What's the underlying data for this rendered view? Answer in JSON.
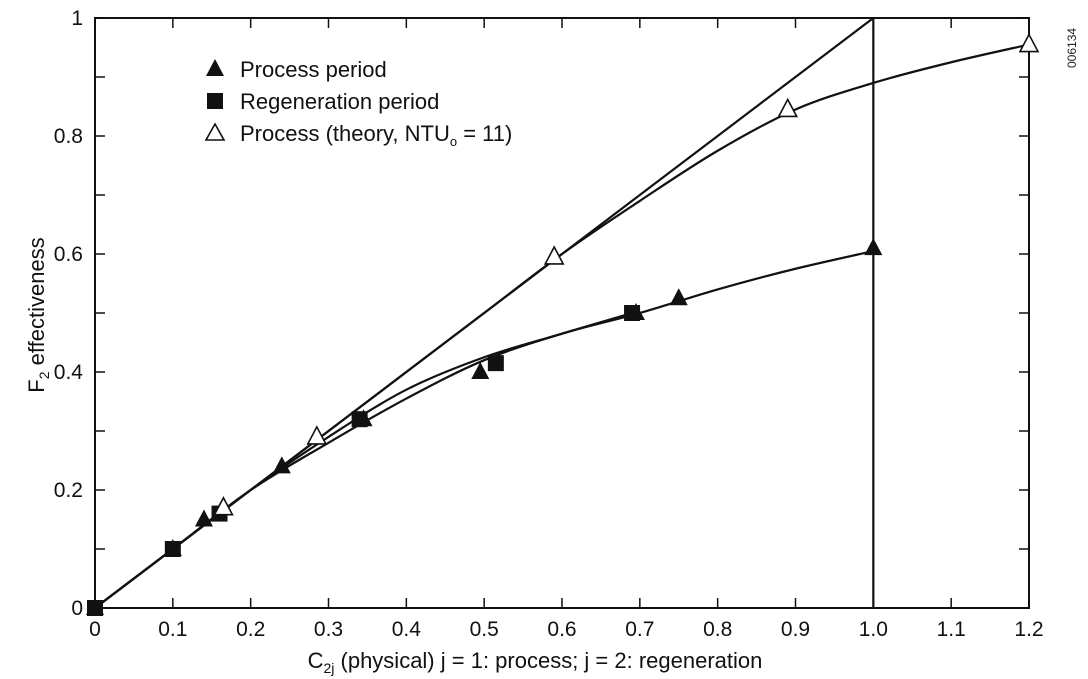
{
  "chart_data": {
    "type": "line",
    "title": "",
    "xlabel": {
      "main": "C",
      "sub": "2j",
      "rest": " (physical)  j = 1: process; j = 2: regeneration"
    },
    "ylabel": {
      "main": "F",
      "sub": "2",
      "rest": " effectiveness"
    },
    "xlim": [
      0,
      1.2
    ],
    "ylim": [
      0,
      1
    ],
    "x_ticks": [
      0,
      0.1,
      0.2,
      0.3,
      0.4,
      0.5,
      0.6,
      0.7,
      0.8,
      0.9,
      1.0,
      1.1,
      1.2
    ],
    "x_tick_labels": [
      "0",
      "0.1",
      "0.2",
      "0.3",
      "0.4",
      "0.5",
      "0.6",
      "0.7",
      "0.8",
      "0.9",
      "1.0",
      "1.1",
      "1.2"
    ],
    "y_ticks": [
      0,
      0.2,
      0.4,
      0.6,
      0.8,
      1
    ],
    "y_tick_labels": [
      "0",
      "0.2",
      "0.4",
      "0.6",
      "0.8",
      "1"
    ],
    "grid": false,
    "legend_position": "top-left",
    "series": [
      {
        "name": "Process period",
        "marker": "filled-triangle",
        "x": [
          0,
          0.1,
          0.14,
          0.165,
          0.24,
          0.345,
          0.495,
          0.695,
          0.75,
          1.0
        ],
        "y": [
          0,
          0.1,
          0.15,
          0.17,
          0.24,
          0.32,
          0.4,
          0.5,
          0.525,
          0.61
        ]
      },
      {
        "name": "Regeneration period",
        "marker": "filled-square",
        "x": [
          0,
          0.1,
          0.16,
          0.34,
          0.515,
          0.69
        ],
        "y": [
          0,
          0.1,
          0.16,
          0.32,
          0.415,
          0.5
        ]
      },
      {
        "name": "Process (theory, NTU",
        "name_sub": "o",
        "name_rest": " = 11)",
        "marker": "open-triangle",
        "x": [
          0.165,
          0.285,
          0.59,
          0.89,
          1.2
        ],
        "y": [
          0.17,
          0.29,
          0.595,
          0.845,
          0.955
        ]
      }
    ],
    "curves": [
      {
        "id": "diagonal",
        "x": [
          0,
          1.0
        ],
        "y": [
          0,
          1.0
        ]
      },
      {
        "id": "vertical-at-1",
        "x": [
          1.0,
          1.0
        ],
        "y": [
          0,
          1.0
        ]
      },
      {
        "id": "theory-curve",
        "x": [
          0,
          0.1,
          0.2,
          0.3,
          0.4,
          0.5,
          0.6,
          0.7,
          0.8,
          0.9,
          1.0,
          1.1,
          1.2
        ],
        "y": [
          0,
          0.1,
          0.2,
          0.3,
          0.4,
          0.5,
          0.6,
          0.69,
          0.775,
          0.845,
          0.89,
          0.925,
          0.955
        ]
      },
      {
        "id": "process-curve",
        "x": [
          0,
          0.1,
          0.2,
          0.3,
          0.4,
          0.5,
          0.6,
          0.7,
          0.8,
          0.9,
          1.0
        ],
        "y": [
          0,
          0.1,
          0.2,
          0.28,
          0.355,
          0.42,
          0.465,
          0.5,
          0.54,
          0.575,
          0.605
        ]
      },
      {
        "id": "regeneration-curve",
        "x": [
          0,
          0.1,
          0.2,
          0.3,
          0.4,
          0.5,
          0.6,
          0.69
        ],
        "y": [
          0,
          0.1,
          0.2,
          0.29,
          0.37,
          0.425,
          0.465,
          0.5
        ]
      }
    ]
  },
  "watermark": "006134"
}
